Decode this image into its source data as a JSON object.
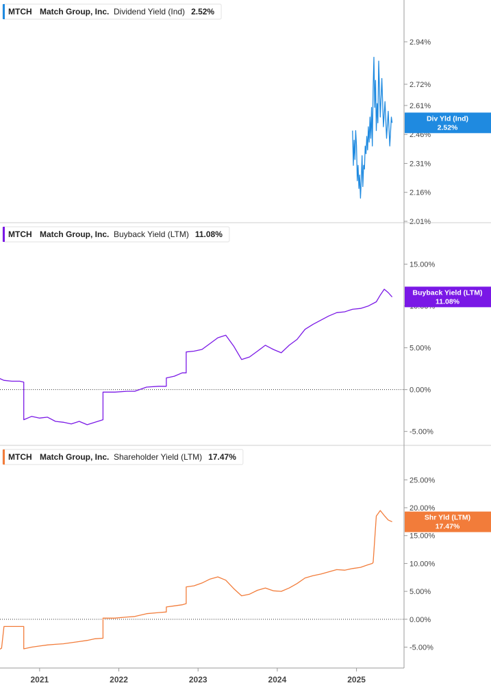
{
  "ticker": "MTCH",
  "company": "Match Group, Inc.",
  "x_axis": {
    "ticks": [
      "2021",
      "2022",
      "2023",
      "2024",
      "2025"
    ]
  },
  "colors": {
    "dividend": "#1f8ae0",
    "buyback": "#7a18e6",
    "shareholder": "#f27c3a",
    "axis": "#999999",
    "tick_text": "#444444"
  },
  "chart_data": [
    {
      "type": "line",
      "panel": "dividend",
      "header": {
        "metric": "Dividend Yield (Ind)",
        "value": "2.52%"
      },
      "badge": {
        "line1": "Div Yld (Ind)",
        "line2": "2.52%"
      },
      "ylim": [
        2.01,
        3.05
      ],
      "yticks": [
        2.01,
        2.16,
        2.31,
        2.46,
        2.61,
        2.72,
        2.94
      ],
      "ytick_labels": [
        "2.01%",
        "2.16%",
        "2.31%",
        "2.46%",
        "2.61%",
        "2.72%",
        "2.94%"
      ],
      "zero_line": false,
      "x": [
        2024.95,
        2024.96,
        2024.97,
        2024.98,
        2024.99,
        2025.0,
        2025.01,
        2025.02,
        2025.03,
        2025.04,
        2025.05,
        2025.06,
        2025.07,
        2025.08,
        2025.09,
        2025.1,
        2025.11,
        2025.12,
        2025.13,
        2025.14,
        2025.15,
        2025.16,
        2025.17,
        2025.18,
        2025.19,
        2025.2,
        2025.21,
        2025.22,
        2025.23,
        2025.24,
        2025.25,
        2025.26,
        2025.27,
        2025.28,
        2025.3,
        2025.32,
        2025.34,
        2025.36,
        2025.38,
        2025.4,
        2025.42,
        2025.44,
        2025.45
      ],
      "values": [
        2.48,
        2.3,
        2.43,
        2.33,
        2.48,
        2.4,
        2.22,
        2.3,
        2.18,
        2.25,
        2.13,
        2.22,
        2.35,
        2.19,
        2.3,
        2.28,
        2.4,
        2.36,
        2.45,
        2.38,
        2.5,
        2.42,
        2.55,
        2.44,
        2.6,
        2.4,
        2.7,
        2.86,
        2.6,
        2.74,
        2.48,
        2.62,
        2.52,
        2.84,
        2.55,
        2.75,
        2.5,
        2.63,
        2.44,
        2.58,
        2.4,
        2.55,
        2.52
      ]
    },
    {
      "type": "line",
      "panel": "buyback",
      "header": {
        "metric": "Buyback Yield (LTM)",
        "value": "11.08%"
      },
      "badge": {
        "line1": "Buyback Yield (LTM)",
        "line2": "11.08%"
      },
      "ylim": [
        -6.5,
        17.5
      ],
      "yticks": [
        -5,
        0,
        5,
        10,
        15
      ],
      "ytick_labels": [
        "-5.00%",
        "0.00%",
        "5.00%",
        "10.00%",
        "15.00%"
      ],
      "zero_line": true,
      "x": [
        2020.48,
        2020.55,
        2020.65,
        2020.75,
        2020.8,
        2020.8,
        2020.9,
        2021.0,
        2021.1,
        2021.2,
        2021.3,
        2021.4,
        2021.5,
        2021.6,
        2021.7,
        2021.8,
        2021.8,
        2021.95,
        2022.1,
        2022.2,
        2022.35,
        2022.35,
        2022.5,
        2022.6,
        2022.6,
        2022.7,
        2022.8,
        2022.85,
        2022.85,
        2022.95,
        2023.05,
        2023.15,
        2023.25,
        2023.35,
        2023.45,
        2023.55,
        2023.65,
        2023.75,
        2023.85,
        2023.95,
        2024.05,
        2024.15,
        2024.25,
        2024.35,
        2024.45,
        2024.55,
        2024.65,
        2024.75,
        2024.85,
        2024.95,
        2025.05,
        2025.15,
        2025.25,
        2025.3,
        2025.35,
        2025.4,
        2025.45
      ],
      "values": [
        1.4,
        1.1,
        1.0,
        1.0,
        0.9,
        -3.6,
        -3.2,
        -3.4,
        -3.3,
        -3.8,
        -3.9,
        -4.1,
        -3.8,
        -4.2,
        -3.9,
        -3.6,
        -0.3,
        -0.3,
        -0.2,
        -0.2,
        0.3,
        0.3,
        0.4,
        0.4,
        1.4,
        1.6,
        2.0,
        2.0,
        4.5,
        4.6,
        4.8,
        5.5,
        6.2,
        6.5,
        5.2,
        3.6,
        3.9,
        4.6,
        5.3,
        4.8,
        4.4,
        5.3,
        6.0,
        7.2,
        7.8,
        8.3,
        8.8,
        9.2,
        9.3,
        9.6,
        9.7,
        10.0,
        10.5,
        11.3,
        12.0,
        11.6,
        11.08
      ]
    },
    {
      "type": "line",
      "panel": "shareholder",
      "header": {
        "metric": "Shareholder Yield (LTM)",
        "value": "17.47%"
      },
      "badge": {
        "line1": "Shr Yld (LTM)",
        "line2": "17.47%"
      },
      "ylim": [
        -8.5,
        27.5
      ],
      "yticks": [
        -5,
        0,
        5,
        10,
        15,
        20,
        25
      ],
      "ytick_labels": [
        "-5.00%",
        "0.00%",
        "5.00%",
        "10.00%",
        "15.00%",
        "20.00%",
        "25.00%"
      ],
      "zero_line": true,
      "x": [
        2020.48,
        2020.52,
        2020.55,
        2020.65,
        2020.75,
        2020.8,
        2020.8,
        2020.9,
        2021.0,
        2021.1,
        2021.2,
        2021.3,
        2021.4,
        2021.5,
        2021.6,
        2021.7,
        2021.8,
        2021.8,
        2021.95,
        2022.1,
        2022.2,
        2022.35,
        2022.35,
        2022.5,
        2022.6,
        2022.6,
        2022.7,
        2022.8,
        2022.85,
        2022.85,
        2022.95,
        2023.05,
        2023.15,
        2023.25,
        2023.35,
        2023.45,
        2023.55,
        2023.65,
        2023.75,
        2023.85,
        2023.95,
        2024.05,
        2024.15,
        2024.25,
        2024.35,
        2024.45,
        2024.55,
        2024.65,
        2024.75,
        2024.85,
        2024.95,
        2025.05,
        2025.15,
        2025.2,
        2025.21,
        2025.25,
        2025.3,
        2025.35,
        2025.4,
        2025.45
      ],
      "values": [
        -5.5,
        -5.2,
        -1.3,
        -1.3,
        -1.3,
        -1.3,
        -5.3,
        -5.0,
        -4.8,
        -4.6,
        -4.5,
        -4.4,
        -4.2,
        -4.0,
        -3.8,
        -3.5,
        -3.4,
        0.2,
        0.2,
        0.4,
        0.5,
        1.0,
        1.0,
        1.2,
        1.3,
        2.2,
        2.4,
        2.6,
        2.8,
        5.8,
        6.0,
        6.5,
        7.2,
        7.6,
        7.0,
        5.5,
        4.2,
        4.5,
        5.2,
        5.6,
        5.1,
        5.0,
        5.6,
        6.4,
        7.4,
        7.8,
        8.1,
        8.5,
        8.9,
        8.8,
        9.1,
        9.3,
        9.8,
        10.0,
        10.2,
        18.5,
        19.5,
        18.6,
        17.8,
        17.47
      ]
    }
  ]
}
